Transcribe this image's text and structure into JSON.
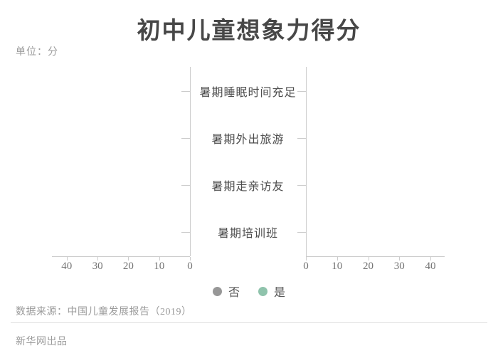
{
  "page": {
    "title": "初中儿童想象力得分",
    "unit_label": "单位：分",
    "source": "数据来源：中国儿童发展报告（2019）",
    "producer": "新华网出品"
  },
  "colors": {
    "series_no": "#979797",
    "series_yes": "#8fc3ac",
    "axis_line": "#cccccc",
    "muted_text": "#9b9b9b",
    "dark_text": "#4d4d4d"
  },
  "legend": [
    {
      "label": "否",
      "color": "#979797"
    },
    {
      "label": "是",
      "color": "#8fc3ac"
    }
  ],
  "chart_data": {
    "type": "bar",
    "variant": "tornado-two-sided",
    "title": "初中儿童想象力得分",
    "unit": "分",
    "categories_top_to_bottom": [
      "暑期睡眠时间充足",
      "暑期外出旅游",
      "暑期走亲访友",
      "暑期培训班"
    ],
    "series": [
      {
        "name": "否",
        "side": "left",
        "color": "#979797",
        "values": []
      },
      {
        "name": "是",
        "side": "right",
        "color": "#8fc3ac",
        "values": []
      }
    ],
    "bars_rendered": false,
    "left_axis_tick_labels": [
      "40",
      "30",
      "20",
      "10",
      "0"
    ],
    "right_axis_tick_labels": [
      "0",
      "10",
      "20",
      "30",
      "40"
    ],
    "xlim": [
      0,
      45
    ],
    "grid": false,
    "legend_position": "bottom-center"
  }
}
